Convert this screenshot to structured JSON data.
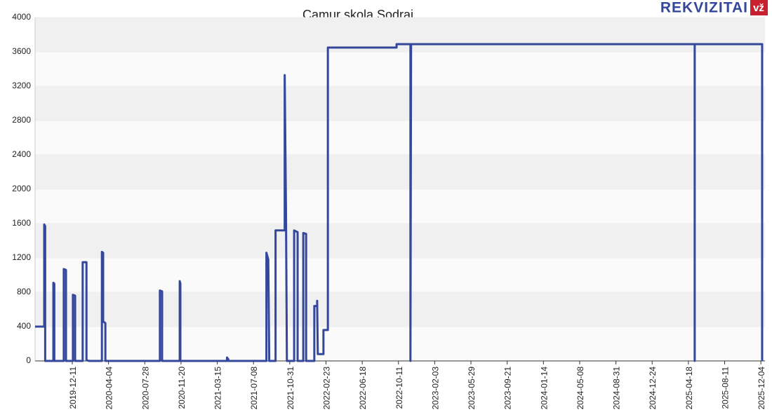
{
  "chart_data": {
    "type": "line",
    "title": "Camur skola Sodrai",
    "logo": "REKVIZITAI",
    "logo_badge": "vž",
    "x": [
      "2019-08-15",
      "2019-09-13",
      "2019-09-13",
      "2019-09-16",
      "2019-09-16",
      "2019-10-12",
      "2019-10-12",
      "2019-10-15",
      "2019-10-15",
      "2019-11-14",
      "2019-11-14",
      "2019-11-21",
      "2019-11-21",
      "2019-12-13",
      "2019-12-13",
      "2019-12-20",
      "2019-12-20",
      "2020-01-13",
      "2020-01-13",
      "2020-01-25",
      "2020-01-25",
      "2020-02-02",
      "2020-03-14",
      "2020-03-14",
      "2020-03-18",
      "2020-03-18",
      "2020-03-25",
      "2020-03-25",
      "2020-09-14",
      "2020-09-14",
      "2020-09-21",
      "2020-09-21",
      "2020-11-16",
      "2020-11-16",
      "2020-11-18",
      "2020-11-18",
      "2021-04-15",
      "2021-04-15",
      "2021-04-19",
      "2021-04-19",
      "2021-08-18",
      "2021-08-18",
      "2021-08-24",
      "2021-08-24",
      "2021-08-27",
      "2021-09-16",
      "2021-09-16",
      "2021-10-15",
      "2021-10-15",
      "2021-10-19",
      "2021-10-22",
      "2021-11-14",
      "2021-11-14",
      "2021-11-25",
      "2021-11-25",
      "2021-12-13",
      "2021-12-13",
      "2021-12-22",
      "2021-12-22",
      "2022-01-17",
      "2022-01-17",
      "2022-01-26",
      "2022-01-26",
      "2022-01-28",
      "2022-02-15",
      "2022-02-15",
      "2022-03-01",
      "2022-03-01",
      "2022-10-05",
      "2022-10-05",
      "2022-11-18",
      "2022-11-18",
      "2022-11-20",
      "2025-05-08",
      "2025-05-08",
      "2025-05-08",
      "2025-12-08",
      "2025-12-08"
    ],
    "series": [
      {
        "color": "#34479a",
        "values": [
          400,
          400,
          1590,
          1570,
          0,
          0,
          910,
          900,
          0,
          0,
          1070,
          1060,
          0,
          0,
          770,
          760,
          0,
          0,
          1150,
          1150,
          10,
          0,
          0,
          1270,
          1260,
          460,
          440,
          0,
          0,
          820,
          810,
          0,
          0,
          930,
          900,
          0,
          0,
          40,
          20,
          0,
          0,
          1260,
          1180,
          1150,
          0,
          0,
          1520,
          1520,
          3330,
          1800,
          0,
          0,
          1520,
          1500,
          0,
          0,
          1490,
          1480,
          0,
          0,
          640,
          640,
          700,
          80,
          80,
          360,
          360,
          3650,
          3650,
          3690,
          3690,
          0,
          3690,
          3690,
          0,
          3690,
          3690,
          0
        ]
      }
    ],
    "xlim": [
      "2019-08-15",
      "2025-12-17"
    ],
    "xticks": [
      "2019-12-11",
      "2020-04-04",
      "2020-07-28",
      "2020-11-20",
      "2021-03-15",
      "2021-07-08",
      "2021-10-31",
      "2022-02-23",
      "2022-06-18",
      "2022-10-11",
      "2023-02-03",
      "2023-05-29",
      "2023-09-21",
      "2024-01-14",
      "2024-05-08",
      "2024-08-31",
      "2024-12-24",
      "2025-04-18",
      "2025-08-11",
      "2025-12-04"
    ],
    "ylim": [
      0,
      4000
    ],
    "yticks": [
      0,
      400,
      800,
      1200,
      1600,
      2000,
      2400,
      2800,
      3200,
      3600,
      4000
    ],
    "grid": true
  }
}
